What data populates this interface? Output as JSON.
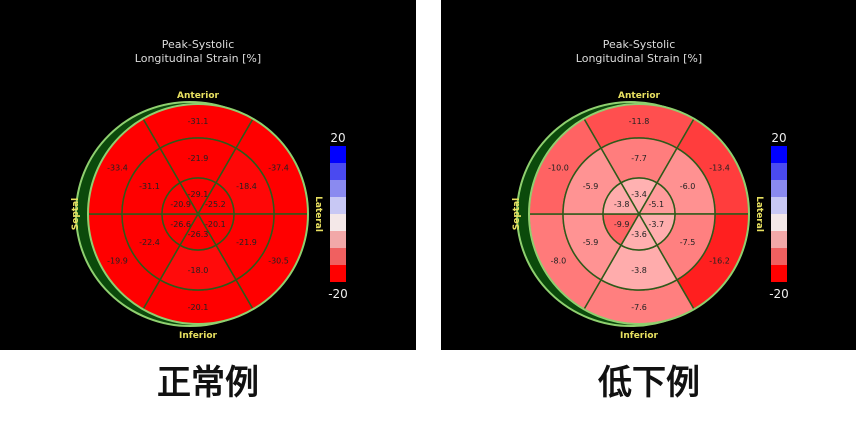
{
  "title_line1": "Peak-Systolic",
  "title_line2": "Longitudinal Strain [%]",
  "orientation": {
    "top": "Anterior",
    "bottom": "Inferior",
    "left": "Septal",
    "right": "Lateral"
  },
  "colorbar": {
    "max": "20",
    "min": "-20",
    "colors": [
      "#0000ff",
      "#4a4af0",
      "#8a8af0",
      "#c8c8f4",
      "#f4e8e8",
      "#f2a8a8",
      "#f06060",
      "#ff0000"
    ]
  },
  "panels": [
    {
      "caption": "正常例",
      "basal": [
        "-31.1",
        "-37.4",
        "-30.5",
        "-20.1",
        "-19.9",
        "-33.4"
      ],
      "mid": [
        "-21.9",
        "-18.4",
        "-21.9",
        "-18.0",
        "-22.4",
        "-31.1"
      ],
      "apex": [
        "-29.1",
        "-25.2",
        "-20.1",
        "-26.3",
        "-26.6",
        "-20.9"
      ]
    },
    {
      "caption": "低下例",
      "basal": [
        "-11.8",
        "-13.4",
        "-16.2",
        "-7.6",
        "-8.0",
        "-10.0"
      ],
      "mid": [
        "-7.7",
        "-6.0",
        "-7.5",
        "-3.8",
        "-5.9",
        "-5.9"
      ],
      "apex": [
        "-3.4",
        "-5.1",
        "-3.7",
        "-3.6",
        "-9.9",
        "-3.8"
      ]
    }
  ]
}
